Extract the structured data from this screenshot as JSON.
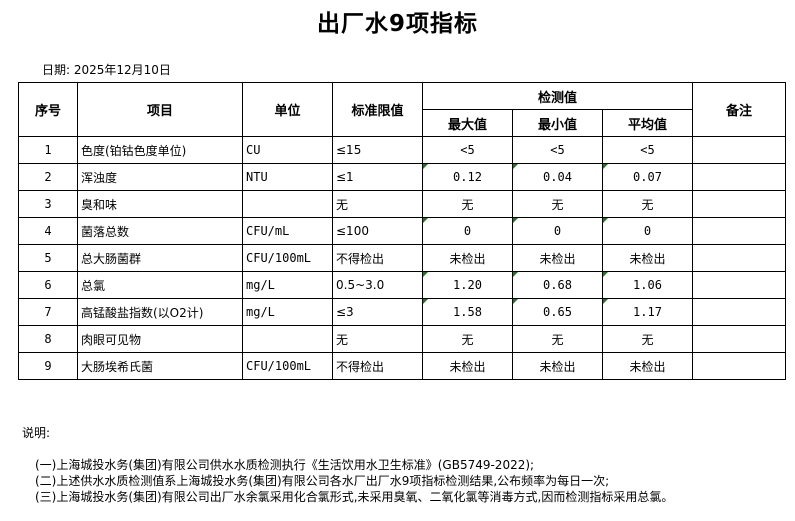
{
  "title": "出厂水9项指标",
  "date_label": "日期: 2025年12月10日",
  "table": {
    "headers": {
      "seq": "序号",
      "item": "项目",
      "unit": "单位",
      "limit": "标准限值",
      "measured": "检测值",
      "max": "最大值",
      "min": "最小值",
      "avg": "平均值",
      "remark": "备注"
    },
    "rows": [
      {
        "seq": "1",
        "item": "色度(铂钴色度单位)",
        "unit": "CU",
        "limit": "≤15",
        "max": "<5",
        "min": "<5",
        "avg": "<5",
        "remark": "",
        "flagged": false
      },
      {
        "seq": "2",
        "item": "浑浊度",
        "unit": "NTU",
        "limit": "≤1",
        "max": "0.12",
        "min": "0.04",
        "avg": "0.07",
        "remark": "",
        "flagged": true
      },
      {
        "seq": "3",
        "item": "臭和味",
        "unit": "",
        "limit": "无",
        "max": "无",
        "min": "无",
        "avg": "无",
        "remark": "",
        "flagged": false
      },
      {
        "seq": "4",
        "item": "菌落总数",
        "unit": "CFU/mL",
        "limit": "≤100",
        "max": "0",
        "min": "0",
        "avg": "0",
        "remark": "",
        "flagged": true
      },
      {
        "seq": "5",
        "item": "总大肠菌群",
        "unit": "CFU/100mL",
        "limit": "不得检出",
        "max": "未检出",
        "min": "未检出",
        "avg": "未检出",
        "remark": "",
        "flagged": false
      },
      {
        "seq": "6",
        "item": "总氯",
        "unit": "mg/L",
        "limit": "0.5~3.0",
        "max": "1.20",
        "min": "0.68",
        "avg": "1.06",
        "remark": "",
        "flagged": true
      },
      {
        "seq": "7",
        "item": "高锰酸盐指数(以O2计)",
        "unit": "mg/L",
        "limit": "≤3",
        "max": "1.58",
        "min": "0.65",
        "avg": "1.17",
        "remark": "",
        "flagged": true
      },
      {
        "seq": "8",
        "item": "肉眼可见物",
        "unit": "",
        "limit": "无",
        "max": "无",
        "min": "无",
        "avg": "无",
        "remark": "",
        "flagged": false
      },
      {
        "seq": "9",
        "item": "大肠埃希氏菌",
        "unit": "CFU/100mL",
        "limit": "不得检出",
        "max": "未检出",
        "min": "未检出",
        "avg": "未检出",
        "remark": "",
        "flagged": false
      }
    ]
  },
  "notes": {
    "heading": "说明:",
    "lines": [
      "(一)上海城投水务(集团)有限公司供水水质检测执行《生活饮用水卫生标准》(GB5749-2022);",
      "(二)上述供水水质检测值系上海城投水务(集团)有限公司各水厂出厂水9项指标检测结果,公布频率为每日一次;",
      "(三)上海城投水务(集团)有限公司出厂水余氯采用化合氯形式,未采用臭氧、二氧化氯等消毒方式,因而检测指标采用总氯。"
    ]
  },
  "colors": {
    "flag": "#1a7a1a",
    "border": "#000000"
  }
}
